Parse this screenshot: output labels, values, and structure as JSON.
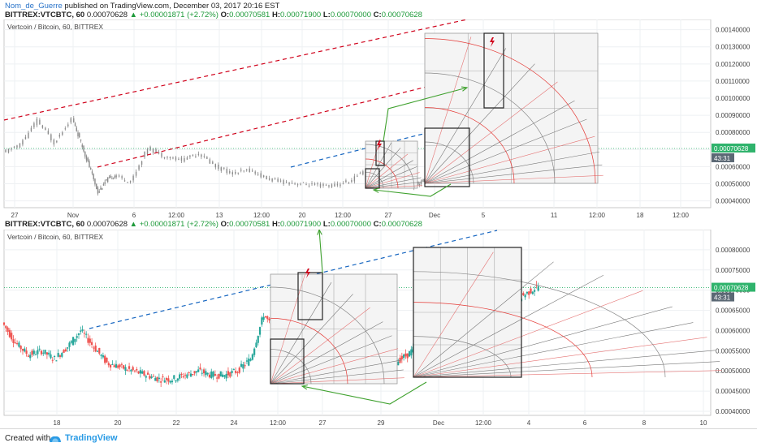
{
  "header": {
    "username": "Nom_de_Guerre",
    "published": "published on TradingView.com, December 03, 2017 20:16 EST"
  },
  "quote": {
    "symbol": "BITTREX:VTCBTC, 60",
    "last": "0.00070628",
    "change": "+0.00001871 (+2.72%)",
    "o_label": "O:",
    "o": "0.00070581",
    "h_label": "H:",
    "h": "0.00071900",
    "l_label": "L:",
    "l": "0.00070000",
    "c_label": "C:",
    "c": "0.00070628"
  },
  "colors": {
    "up": "#26a69a",
    "down": "#ef5350",
    "price_badge": "#2fb36c",
    "trend_red": "#d0021b",
    "trend_blue": "#1565c0",
    "green_arrow": "#3fa12e",
    "pitchfan_red": "#e53935"
  },
  "footer": {
    "created_with": "Created with",
    "brand": "TradingView"
  },
  "chart_data": [
    {
      "type": "line",
      "title": "Vertcoin / Bitcoin, 60, BITTREX",
      "x_tick_labels": [
        "27",
        "Nov",
        "6",
        "12:00",
        "13",
        "12:00",
        "20",
        "12:00",
        "27",
        "Dec",
        "5",
        "11",
        "12:00",
        "18",
        "12:00"
      ],
      "y_tick_labels": [
        "0.00140000",
        "0.00130000",
        "0.00120000",
        "0.00110000",
        "0.00100000",
        "0.00090000",
        "0.00080000",
        "0.00070000",
        "0.00060000",
        "0.00050000",
        "0.00040000"
      ],
      "ylim": [
        0.00036,
        0.00146
      ],
      "last_price": "0.00070628",
      "countdown": "43:31",
      "series": [
        {
          "x": [
            0,
            2,
            4,
            6,
            8,
            9,
            10,
            11,
            12,
            13,
            15,
            17,
            19,
            21,
            23,
            25,
            27,
            29,
            31,
            33,
            35,
            37,
            39,
            41,
            43,
            45,
            47,
            48,
            49,
            50,
            51,
            52,
            53,
            54,
            55
          ],
          "values": [
            0.00068,
            0.00073,
            0.00087,
            0.00074,
            0.00088,
            0.00074,
            0.0006,
            0.00045,
            0.00052,
            0.00055,
            0.00051,
            0.00071,
            0.00066,
            0.00064,
            0.00068,
            0.0006,
            0.00056,
            0.00058,
            0.00053,
            0.00051,
            0.0005,
            0.00049,
            0.00049,
            0.00052,
            0.00061,
            0.00052,
            0.0005,
            0.00049,
            0.00051,
            0.00053,
            0.00056,
            0.00065,
            0.00073,
            0.00066,
            0.00071
          ]
        }
      ]
    },
    {
      "type": "line",
      "title": "Vertcoin / Bitcoin, 60, BITTREX",
      "x_tick_labels": [
        "18",
        "20",
        "22",
        "24",
        "12:00",
        "27",
        "29",
        "Dec",
        "12:00",
        "4",
        "6",
        "8",
        "10"
      ],
      "y_tick_labels": [
        "0.00080000",
        "0.00075000",
        "0.00070000",
        "0.00065000",
        "0.00060000",
        "0.00055000",
        "0.00050000",
        "0.00045000",
        "0.00040000"
      ],
      "ylim": [
        0.00039,
        0.00085
      ],
      "last_price": "0.00070628",
      "countdown": "43:31",
      "series": [
        {
          "x": [
            0,
            1,
            2,
            3,
            4,
            5,
            6,
            7,
            8,
            9,
            10,
            11,
            12,
            13,
            14,
            15,
            16,
            17,
            18,
            19,
            20,
            21,
            22,
            23,
            24,
            25,
            26,
            27,
            28,
            29,
            30,
            31,
            32,
            33,
            34,
            35,
            36,
            37,
            38,
            39,
            40,
            41
          ],
          "values": [
            0.00062,
            0.00057,
            0.00054,
            0.00055,
            0.00053,
            0.00056,
            0.0006,
            0.00056,
            0.00052,
            0.00051,
            0.0005,
            0.00049,
            0.00048,
            0.00048,
            0.00049,
            0.0005,
            0.00049,
            0.00049,
            0.0005,
            0.00053,
            0.00064,
            0.00059,
            0.00057,
            0.00055,
            0.00054,
            0.00053,
            0.00052,
            0.0005,
            0.0005,
            0.00051,
            0.00052,
            0.00054,
            0.00057,
            0.0006,
            0.00063,
            0.00068,
            0.00078,
            0.00073,
            0.00069,
            0.00067,
            0.00069,
            0.00071
          ]
        }
      ]
    }
  ]
}
